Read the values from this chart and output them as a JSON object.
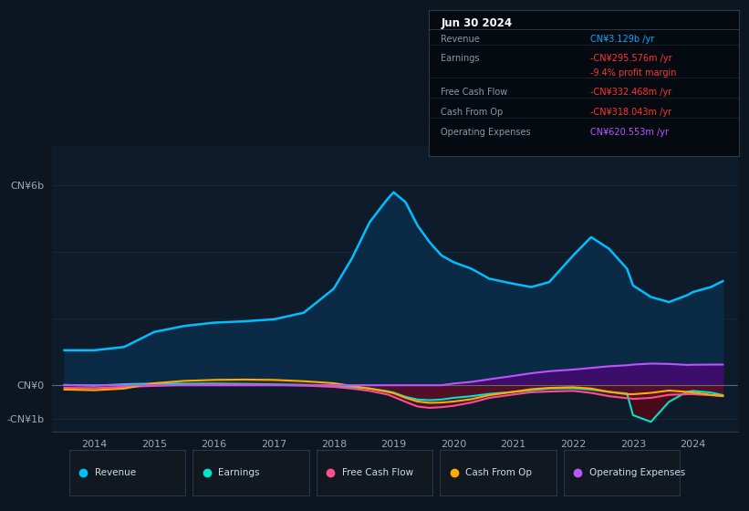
{
  "background_color": "#0d1520",
  "chart_bg": "#0d1b2a",
  "ylim_low": -1400000000,
  "ylim_high": 7200000000,
  "xlim_low": 2013.3,
  "xlim_high": 2024.75,
  "years": [
    2013.5,
    2014.0,
    2014.5,
    2015.0,
    2015.5,
    2016.0,
    2016.5,
    2017.0,
    2017.5,
    2018.0,
    2018.3,
    2018.6,
    2018.9,
    2019.0,
    2019.2,
    2019.4,
    2019.6,
    2019.8,
    2020.0,
    2020.3,
    2020.6,
    2021.0,
    2021.3,
    2021.6,
    2022.0,
    2022.3,
    2022.6,
    2022.9,
    2023.0,
    2023.3,
    2023.6,
    2023.9,
    2024.0,
    2024.3,
    2024.5
  ],
  "revenue": [
    1050000000,
    1050000000,
    1150000000,
    1600000000,
    1780000000,
    1880000000,
    1920000000,
    1980000000,
    2180000000,
    2900000000,
    3800000000,
    4900000000,
    5600000000,
    5800000000,
    5500000000,
    4800000000,
    4300000000,
    3900000000,
    3700000000,
    3500000000,
    3200000000,
    3050000000,
    2950000000,
    3100000000,
    3900000000,
    4450000000,
    4100000000,
    3500000000,
    3000000000,
    2650000000,
    2500000000,
    2700000000,
    2800000000,
    2950000000,
    3129000000
  ],
  "earnings": [
    10000000,
    -15000000,
    30000000,
    50000000,
    45000000,
    50000000,
    40000000,
    25000000,
    10000000,
    -20000000,
    -60000000,
    -100000000,
    -180000000,
    -220000000,
    -350000000,
    -430000000,
    -450000000,
    -430000000,
    -380000000,
    -330000000,
    -260000000,
    -200000000,
    -150000000,
    -100000000,
    -90000000,
    -130000000,
    -200000000,
    -250000000,
    -900000000,
    -1100000000,
    -500000000,
    -200000000,
    -170000000,
    -220000000,
    -295576000
  ],
  "free_cash_flow": [
    -80000000,
    -90000000,
    -50000000,
    -20000000,
    10000000,
    20000000,
    20000000,
    10000000,
    -10000000,
    -50000000,
    -100000000,
    -170000000,
    -280000000,
    -350000000,
    -500000000,
    -640000000,
    -680000000,
    -660000000,
    -620000000,
    -520000000,
    -380000000,
    -280000000,
    -210000000,
    -190000000,
    -170000000,
    -230000000,
    -330000000,
    -390000000,
    -410000000,
    -380000000,
    -290000000,
    -270000000,
    -270000000,
    -300000000,
    -332468000
  ],
  "cash_from_op": [
    -130000000,
    -150000000,
    -100000000,
    60000000,
    130000000,
    160000000,
    170000000,
    160000000,
    120000000,
    60000000,
    -20000000,
    -100000000,
    -200000000,
    -240000000,
    -380000000,
    -490000000,
    -530000000,
    -520000000,
    -490000000,
    -420000000,
    -300000000,
    -200000000,
    -120000000,
    -80000000,
    -60000000,
    -100000000,
    -200000000,
    -270000000,
    -270000000,
    -230000000,
    -160000000,
    -200000000,
    -220000000,
    -290000000,
    -318043000
  ],
  "operating_expenses": [
    0,
    0,
    0,
    0,
    0,
    0,
    0,
    0,
    0,
    0,
    0,
    0,
    0,
    0,
    0,
    0,
    0,
    0,
    50000000,
    100000000,
    180000000,
    280000000,
    360000000,
    420000000,
    470000000,
    520000000,
    570000000,
    600000000,
    620000000,
    650000000,
    640000000,
    610000000,
    615000000,
    620000000,
    620553000
  ],
  "colors": {
    "revenue_line": "#00bfff",
    "revenue_fill": "#0a2a45",
    "earnings_line": "#00e5cc",
    "earnings_fill_neg": "#4a0a18",
    "fcf_line": "#ff4d8f",
    "fcf_fill_neg": "#5a1230",
    "cfo_line": "#ffaa00",
    "cfo_fill_pos": "#3a3000",
    "opex_line": "#bb55ff",
    "opex_fill": "#3a0e6a"
  },
  "infobox": {
    "date_text": "Jun 30 2024",
    "bg_color": "#050a10",
    "border_color": "#2a3a4a",
    "rows": [
      {
        "label": "Revenue",
        "value": "CN¥3.129b /yr",
        "vc": "#00aaff"
      },
      {
        "label": "Earnings",
        "value": "-CN¥295.576m /yr",
        "vc": "#ff3333"
      },
      {
        "label": "",
        "value": "-9.4% profit margin",
        "vc": "#ff3333"
      },
      {
        "label": "Free Cash Flow",
        "value": "-CN¥332.468m /yr",
        "vc": "#ff3333"
      },
      {
        "label": "Cash From Op",
        "value": "-CN¥318.043m /yr",
        "vc": "#ff3333"
      },
      {
        "label": "Operating Expenses",
        "value": "CN¥620.553m /yr",
        "vc": "#bb55ff"
      }
    ]
  },
  "legend_items": [
    {
      "label": "Revenue",
      "color": "#00bfff"
    },
    {
      "label": "Earnings",
      "color": "#00e5cc"
    },
    {
      "label": "Free Cash Flow",
      "color": "#ff4d8f"
    },
    {
      "label": "Cash From Op",
      "color": "#ffaa00"
    },
    {
      "label": "Operating Expenses",
      "color": "#bb55ff"
    }
  ],
  "ytick_positions": [
    6000000000,
    0,
    -1000000000
  ],
  "ytick_labels": [
    "CN¥6b",
    "CN¥0",
    "-CN¥1b"
  ],
  "xticks": [
    2014,
    2015,
    2016,
    2017,
    2018,
    2019,
    2020,
    2021,
    2022,
    2023,
    2024
  ]
}
